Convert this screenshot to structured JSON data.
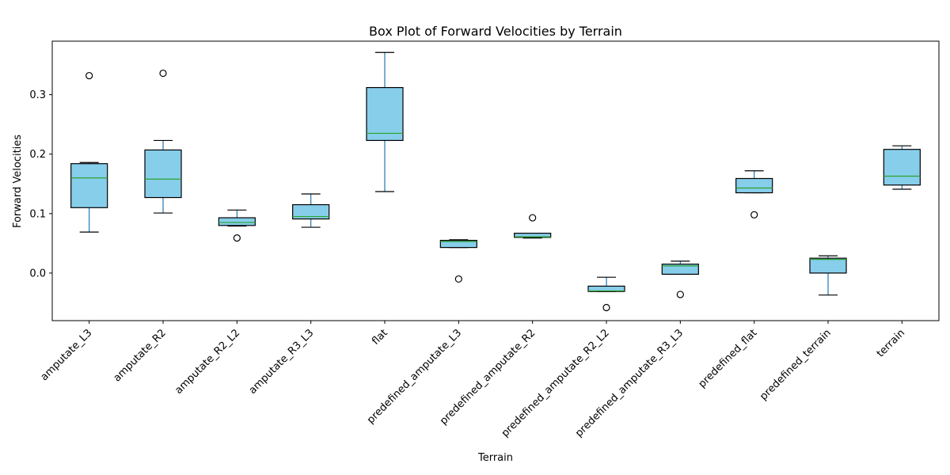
{
  "chart_data": {
    "type": "box",
    "title": "Box Plot of Forward Velocities by Terrain",
    "xlabel": "Terrain",
    "ylabel": "Forward Velocities",
    "ylim": [
      -0.08,
      0.39
    ],
    "yticks": [
      0.0,
      0.1,
      0.2,
      0.3
    ],
    "ytick_labels": [
      "0.0",
      "0.1",
      "0.2",
      "0.3"
    ],
    "grid": false,
    "colors": {
      "box_fill": "#87CEEB",
      "box_edge": "#000000",
      "whisker": "#1f77b4",
      "median": "#2ca02c",
      "outlier_edge": "#000000"
    },
    "categories": [
      "amputate_L3",
      "amputate_R2",
      "amputate_R2_L2",
      "amputate_R3_L3",
      "flat",
      "predefined_amputate_L3",
      "predefined_amputate_R2",
      "predefined_amputate_R2_L2",
      "predefined_amputate_R3_L3",
      "predefined_flat",
      "predefined_terrain",
      "terrain"
    ],
    "boxes": [
      {
        "whislo": 0.069,
        "q1": 0.11,
        "median": 0.16,
        "q3": 0.184,
        "whishi": 0.186,
        "outliers": [
          0.332
        ]
      },
      {
        "whislo": 0.101,
        "q1": 0.127,
        "median": 0.158,
        "q3": 0.207,
        "whishi": 0.223,
        "outliers": [
          0.336
        ]
      },
      {
        "whislo": 0.079,
        "q1": 0.08,
        "median": 0.085,
        "q3": 0.093,
        "whishi": 0.106,
        "outliers": [
          0.059
        ]
      },
      {
        "whislo": 0.077,
        "q1": 0.091,
        "median": 0.095,
        "q3": 0.115,
        "whishi": 0.133,
        "outliers": []
      },
      {
        "whislo": 0.137,
        "q1": 0.223,
        "median": 0.235,
        "q3": 0.312,
        "whishi": 0.371,
        "outliers": []
      },
      {
        "whislo": 0.043,
        "q1": 0.043,
        "median": 0.053,
        "q3": 0.055,
        "whishi": 0.056,
        "outliers": [
          -0.01
        ]
      },
      {
        "whislo": 0.059,
        "q1": 0.06,
        "median": 0.061,
        "q3": 0.067,
        "whishi": 0.067,
        "outliers": [
          0.093
        ]
      },
      {
        "whislo": -0.031,
        "q1": -0.031,
        "median": -0.03,
        "q3": -0.022,
        "whishi": -0.007,
        "outliers": [
          -0.058
        ]
      },
      {
        "whislo": -0.002,
        "q1": -0.002,
        "median": 0.012,
        "q3": 0.015,
        "whishi": 0.02,
        "outliers": [
          -0.036
        ]
      },
      {
        "whislo": 0.135,
        "q1": 0.135,
        "median": 0.143,
        "q3": 0.159,
        "whishi": 0.172,
        "outliers": [
          0.098
        ]
      },
      {
        "whislo": -0.037,
        "q1": 0.0,
        "median": 0.023,
        "q3": 0.025,
        "whishi": 0.029,
        "outliers": []
      },
      {
        "whislo": 0.141,
        "q1": 0.148,
        "median": 0.163,
        "q3": 0.208,
        "whishi": 0.214,
        "outliers": []
      }
    ]
  }
}
